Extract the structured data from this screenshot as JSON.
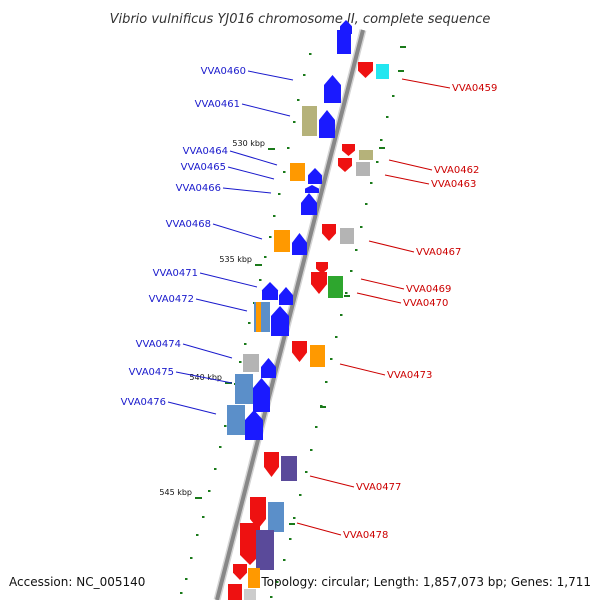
{
  "title": "Vibrio vulnificus YJ016 chromosome II, complete sequence",
  "footer": {
    "accession": "Accession: NC_005140",
    "topology": "Topology: circular; Length: 1,857,073 bp; Genes: 1,711"
  },
  "colors": {
    "plus_strand_label": "#1a1acc",
    "minus_strand_label": "#cc0000",
    "backbone": "#888888",
    "tick": "#1a7a1a"
  },
  "kbp_marks": [
    "530 kbp",
    "535 kbp",
    "540 kbp",
    "545 kbp"
  ],
  "left_labels": [
    "VVA0460",
    "VVA0461",
    "VVA0464",
    "VVA0465",
    "VVA0466",
    "VVA0468",
    "VVA0471",
    "VVA0472",
    "VVA0474",
    "VVA0475",
    "VVA0476"
  ],
  "right_labels": [
    "VVA0459",
    "VVA0462",
    "VVA0463",
    "VVA0467",
    "VVA0469",
    "VVA0470",
    "VVA0473",
    "VVA0477",
    "VVA0478"
  ]
}
